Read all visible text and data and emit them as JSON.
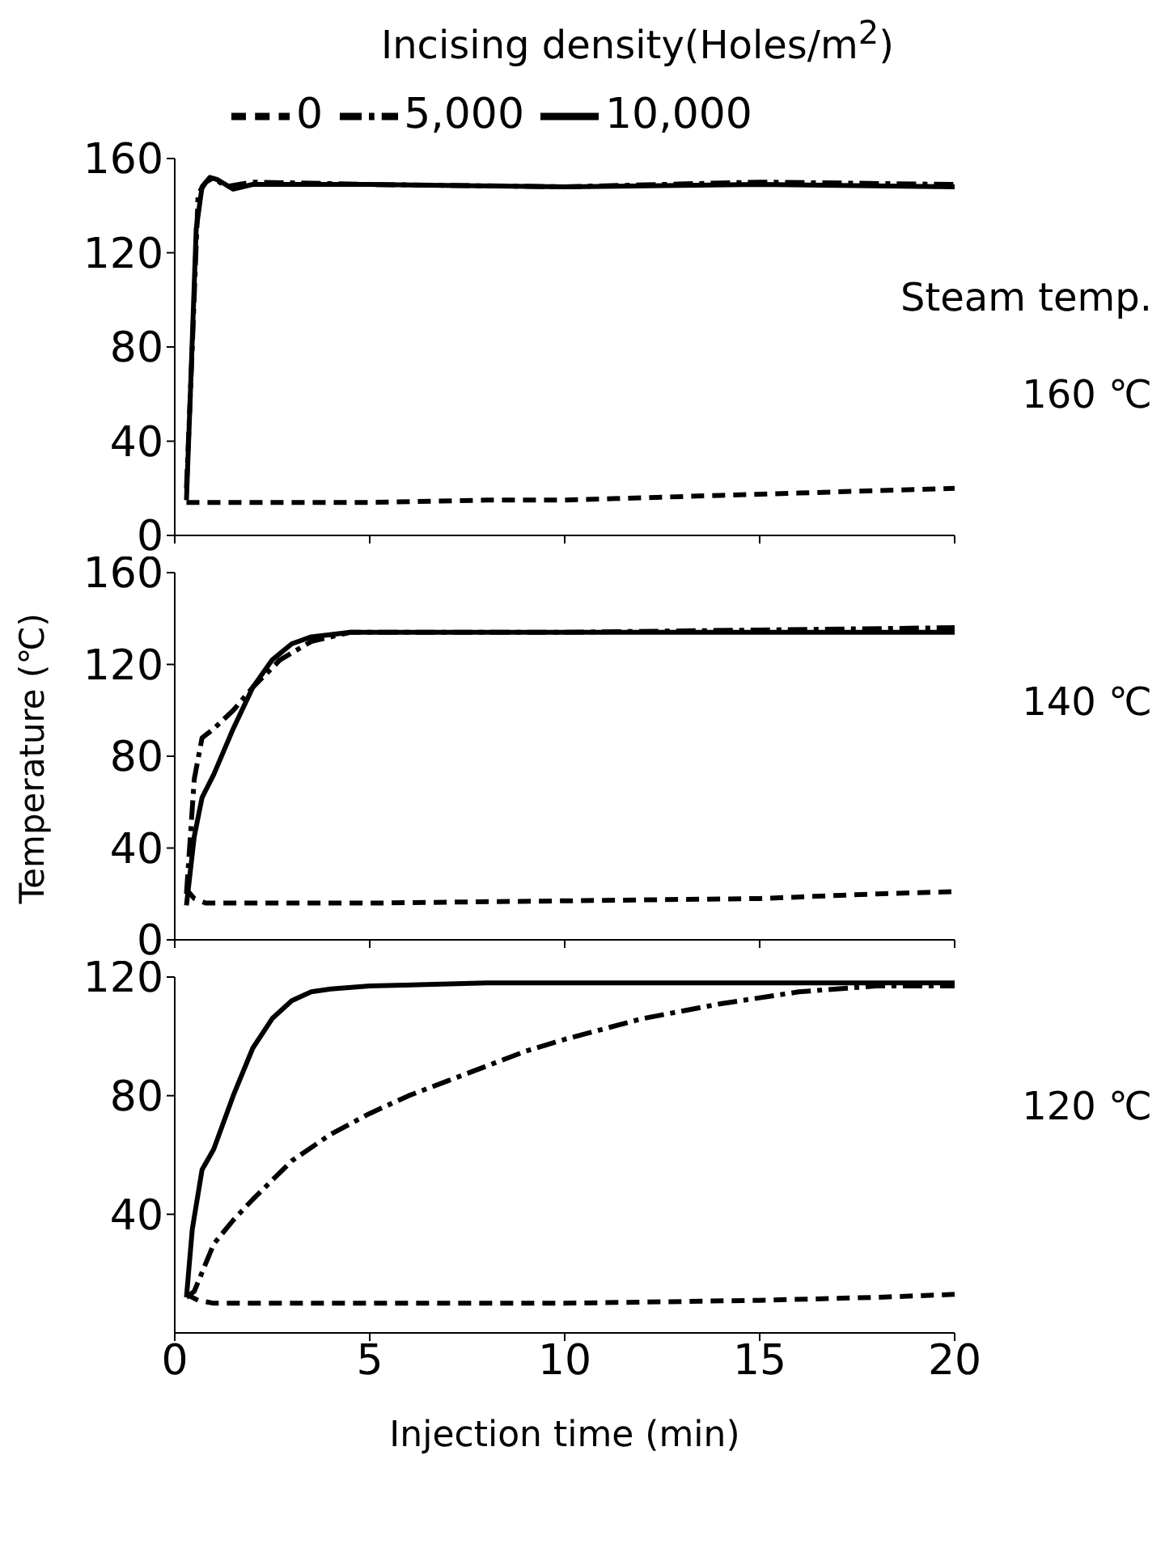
{
  "chart_data": [
    {
      "type": "line",
      "legend_title": "Incising density(Holes/m$^{2}$)",
      "legend": "top",
      "tick_labels": "y",
      "xlim": [
        0,
        20
      ],
      "xticks": [
        0,
        5,
        10,
        15,
        20
      ],
      "ylim": [
        0,
        160
      ],
      "yticks": [
        0,
        40,
        80,
        120,
        160
      ],
      "annotations": [
        "Steam temp.",
        "160 ℃"
      ],
      "series": [
        {
          "name": "0",
          "color": "#000000",
          "line_style": "dashed",
          "x": [
            0.3,
            2,
            5,
            8,
            10,
            12,
            14,
            16,
            18,
            20
          ],
          "values": [
            14,
            14,
            14,
            15,
            15,
            16,
            17,
            18,
            19,
            20
          ]
        },
        {
          "name": "5,000",
          "color": "#000000",
          "line_style": "dashdot",
          "x": [
            0.3,
            0.45,
            0.6,
            0.8,
            1,
            1.3,
            2,
            5,
            10,
            15,
            20
          ],
          "values": [
            20,
            80,
            145,
            150,
            152,
            148,
            150,
            149,
            148,
            150,
            149
          ]
        },
        {
          "name": "10,000",
          "color": "#000000",
          "line_style": "solid",
          "x": [
            0.3,
            0.4,
            0.55,
            0.7,
            0.9,
            1.1,
            1.5,
            2,
            5,
            10,
            15,
            20
          ],
          "values": [
            15,
            60,
            130,
            148,
            152,
            151,
            147,
            149,
            149,
            148,
            149,
            148
          ]
        }
      ]
    },
    {
      "type": "line",
      "ylabel": "Temperature (℃)",
      "tick_labels": "y",
      "xlim": [
        0,
        20
      ],
      "xticks": [
        0,
        5,
        10,
        15,
        20
      ],
      "ylim": [
        0,
        160
      ],
      "yticks": [
        0,
        40,
        80,
        120,
        160
      ],
      "annotations": [
        "140 ℃"
      ],
      "series": [
        {
          "color": "#000000",
          "line_style": "dashed",
          "x": [
            0.3,
            0.5,
            0.8,
            2,
            5,
            10,
            15,
            18,
            20
          ],
          "values": [
            22,
            18,
            16,
            16,
            16,
            17,
            18,
            20,
            21
          ]
        },
        {
          "color": "#000000",
          "line_style": "dashdot",
          "x": [
            0.3,
            0.5,
            0.7,
            1,
            1.5,
            2,
            2.7,
            3.5,
            4.5,
            10,
            15,
            20
          ],
          "values": [
            20,
            70,
            88,
            92,
            100,
            110,
            122,
            130,
            134,
            134,
            135,
            136
          ]
        },
        {
          "color": "#000000",
          "line_style": "solid",
          "x": [
            0.3,
            0.5,
            0.7,
            1,
            1.5,
            2,
            2.5,
            3,
            3.5,
            4.5,
            10,
            15,
            20
          ],
          "values": [
            15,
            45,
            62,
            72,
            92,
            110,
            122,
            129,
            132,
            134,
            134,
            134,
            134
          ]
        }
      ]
    },
    {
      "type": "line",
      "xlabel": "Injection time (min)",
      "xlim": [
        0,
        20
      ],
      "xticks": [
        0,
        5,
        10,
        15,
        20
      ],
      "ylim": [
        0,
        120
      ],
      "yticks": [
        40,
        80,
        120
      ],
      "annotations": [
        "120 ℃"
      ],
      "series": [
        {
          "color": "#000000",
          "line_style": "dashed",
          "x": [
            0.3,
            0.6,
            1,
            3,
            5,
            10,
            15,
            18,
            20
          ],
          "values": [
            13,
            11,
            10,
            10,
            10,
            10,
            11,
            12,
            13
          ]
        },
        {
          "color": "#000000",
          "line_style": "dashdot",
          "x": [
            0.3,
            0.5,
            1,
            1.5,
            2,
            3,
            4,
            5,
            6,
            7,
            8,
            9,
            10,
            12,
            14,
            16,
            18,
            20
          ],
          "values": [
            12,
            14,
            30,
            38,
            45,
            58,
            67,
            74,
            80,
            85,
            90,
            95,
            99,
            106,
            111,
            115,
            117,
            117
          ]
        },
        {
          "color": "#000000",
          "line_style": "solid",
          "x": [
            0.3,
            0.45,
            0.7,
            1,
            1.5,
            2,
            2.5,
            3,
            3.5,
            4,
            5,
            8,
            12,
            20
          ],
          "values": [
            12,
            35,
            55,
            62,
            80,
            96,
            106,
            112,
            115,
            116,
            117,
            118,
            118,
            118
          ]
        }
      ]
    }
  ]
}
